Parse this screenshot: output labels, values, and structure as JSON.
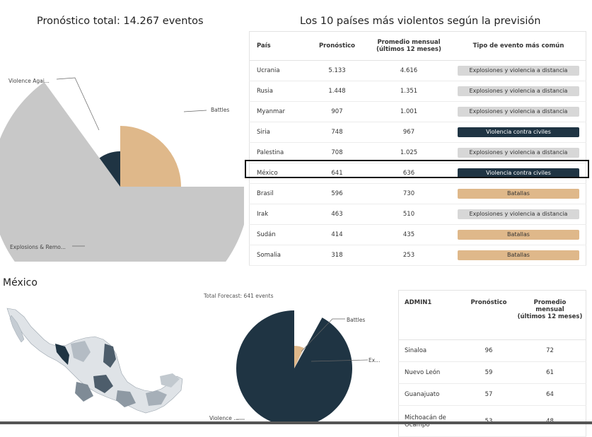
{
  "colors": {
    "dark": "#1f3443",
    "tan": "#dfb88a",
    "gray": "#c8c8c8",
    "pill_gray": "#d7d7d7"
  },
  "top": {
    "pie_title": "Pronóstico total: 14.267 eventos",
    "table_title": "Los 10 países más violentos según la previsión",
    "columns": [
      "País",
      "Pronóstico",
      "Promedio mensual",
      "(últimos 12 meses)",
      "Tipo de evento más común"
    ],
    "rows": [
      {
        "country": "Ucrania",
        "forecast": "5.133",
        "avg": "4.616",
        "type": "Explosiones y violencia a distancia",
        "style": "gray"
      },
      {
        "country": "Rusia",
        "forecast": "1.448",
        "avg": "1.351",
        "type": "Explosiones y violencia a distancia",
        "style": "gray"
      },
      {
        "country": "Myanmar",
        "forecast": "907",
        "avg": "1.001",
        "type": "Explosiones y violencia a distancia",
        "style": "gray"
      },
      {
        "country": "Siria",
        "forecast": "748",
        "avg": "967",
        "type": "Violencia contra civiles",
        "style": "dark"
      },
      {
        "country": "Palestina",
        "forecast": "708",
        "avg": "1.025",
        "type": "Explosiones y violencia a distancia",
        "style": "gray"
      },
      {
        "country": "México",
        "forecast": "641",
        "avg": "636",
        "type": "Violencia contra civiles",
        "style": "dark"
      },
      {
        "country": "Brasil",
        "forecast": "596",
        "avg": "730",
        "type": "Batallas",
        "style": "tan"
      },
      {
        "country": "Irak",
        "forecast": "463",
        "avg": "510",
        "type": "Explosiones y violencia a distancia",
        "style": "gray"
      },
      {
        "country": "Sudán",
        "forecast": "414",
        "avg": "435",
        "type": "Batallas",
        "style": "tan"
      },
      {
        "country": "Somalia",
        "forecast": "318",
        "avg": "253",
        "type": "Batallas",
        "style": "tan"
      }
    ]
  },
  "mexico": {
    "section_title": "México",
    "pie_title": "Total Forecast: 641 events",
    "columns": [
      "ADMIN1",
      "Pronóstico",
      "Promedio",
      "mensual",
      "(últimos 12 meses)"
    ],
    "rows": [
      {
        "state": "Sinaloa",
        "forecast": "96",
        "avg": "72"
      },
      {
        "state": "Nuevo León",
        "forecast": "59",
        "avg": "61"
      },
      {
        "state": "Guanajuato",
        "forecast": "57",
        "avg": "64"
      },
      {
        "state": "Michoacán de",
        "state2": "Ocampo",
        "forecast": "53",
        "avg": "48"
      }
    ]
  },
  "chart_data": [
    {
      "type": "pie",
      "title": "Pronóstico total: 14.267 eventos",
      "labels": [
        "Battles",
        "Explosions & Remo...",
        "Violence Agai..."
      ],
      "values": [
        0.25,
        0.65,
        0.1
      ],
      "colors": [
        "#dfb88a",
        "#c8c8c8",
        "#1f3443"
      ]
    },
    {
      "type": "pie",
      "title": "Total Forecast: 641 events",
      "labels": [
        "Battles",
        "Ex...",
        "Violence ..."
      ],
      "values": [
        0.07,
        0.01,
        0.92
      ],
      "colors": [
        "#dfb88a",
        "#e8e8e8",
        "#1f3443"
      ]
    }
  ]
}
